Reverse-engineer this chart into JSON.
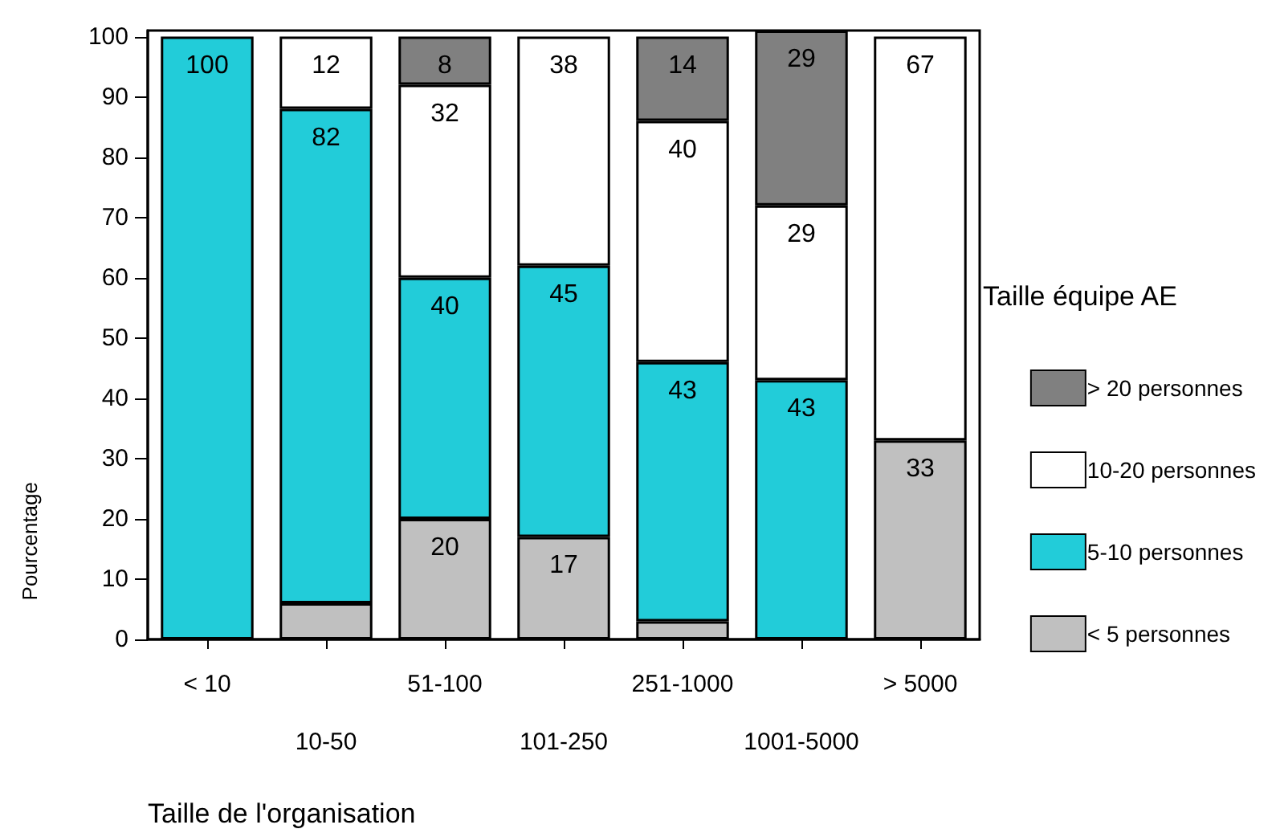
{
  "chart_data": {
    "type": "bar",
    "stacked": true,
    "categories": [
      "< 10",
      "10-50",
      "51-100",
      "101-250",
      "251-1000",
      "1001-5000",
      "> 5000"
    ],
    "series": [
      {
        "name": "< 5 personnes",
        "color": "#c0c0c0",
        "values": [
          null,
          6,
          20,
          17,
          3,
          null,
          33
        ],
        "value_labels": [
          null,
          null,
          "20",
          "17",
          null,
          null,
          "33"
        ]
      },
      {
        "name": "5-10 personnes",
        "color": "#22ccd9",
        "values": [
          100,
          82,
          40,
          45,
          43,
          43,
          null
        ],
        "value_labels": [
          "100",
          "82",
          "40",
          "45",
          "43",
          "43",
          null
        ]
      },
      {
        "name": "10-20 personnes",
        "color": "#ffffff",
        "values": [
          null,
          12,
          32,
          38,
          40,
          29,
          67
        ],
        "value_labels": [
          null,
          "12",
          "32",
          "38",
          "40",
          "29",
          "67"
        ]
      },
      {
        "name": "> 20 personnes",
        "color": "#808080",
        "values": [
          null,
          null,
          8,
          null,
          14,
          29,
          null
        ],
        "value_labels": [
          null,
          null,
          "8",
          null,
          "14",
          "29",
          null
        ]
      }
    ],
    "ylim": [
      0,
      101
    ],
    "yticks": [
      0,
      10,
      20,
      30,
      40,
      50,
      60,
      70,
      80,
      90,
      100
    ],
    "ylabel": "Pourcentage",
    "xlabel": "Taille de l'organisation",
    "legend_title": "Taille équipe AE",
    "legend": "right",
    "grid": false
  }
}
